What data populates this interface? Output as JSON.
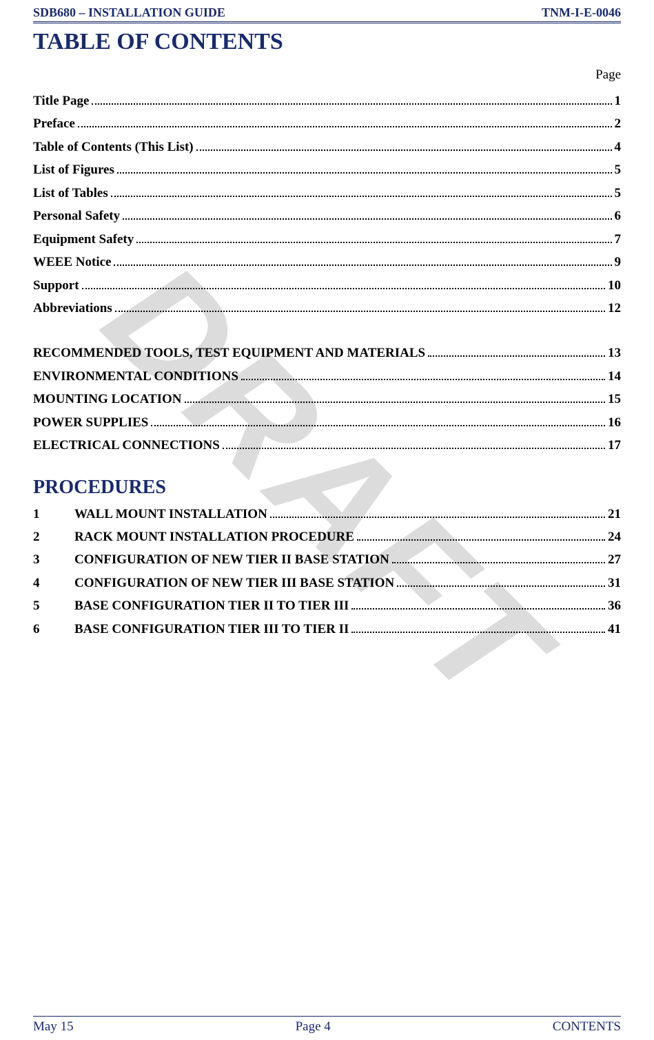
{
  "header": {
    "left": "SDB680 – INSTALLATION GUIDE",
    "right": "TNM-I-E-0046",
    "color": "#1a2a6c"
  },
  "watermark": {
    "text": "DRAFT",
    "color_rgba": "rgba(128,128,128,0.28)",
    "rotation_deg": 45,
    "fontsize": 220
  },
  "toc": {
    "title": "TABLE OF CONTENTS",
    "page_label": "Page",
    "entries": [
      {
        "label": "Title Page",
        "page": "1"
      },
      {
        "label": "Preface",
        "page": "2"
      },
      {
        "label": "Table of Contents (This List)",
        "page": "4"
      },
      {
        "label": "List of Figures",
        "page": "5"
      },
      {
        "label": "List of Tables",
        "page": "5"
      },
      {
        "label": "Personal Safety",
        "page": "6"
      },
      {
        "label": "Equipment Safety",
        "page": "7"
      },
      {
        "label": "WEEE Notice",
        "page": "9"
      },
      {
        "label": "Support",
        "page": "10"
      },
      {
        "label": "Abbreviations",
        "page": "12"
      }
    ],
    "section_entries": [
      {
        "label": "RECOMMENDED TOOLS, TEST EQUIPMENT AND MATERIALS",
        "page": "13"
      },
      {
        "label": "ENVIRONMENTAL CONDITIONS",
        "page": "14"
      },
      {
        "label": "MOUNTING LOCATION",
        "page": "15"
      },
      {
        "label": "POWER SUPPLIES",
        "page": "16"
      },
      {
        "label": "ELECTRICAL CONNECTIONS",
        "page": "17"
      }
    ]
  },
  "procedures": {
    "title": "PROCEDURES",
    "entries": [
      {
        "num": "1",
        "label": "WALL MOUNT INSTALLATION",
        "page": "21"
      },
      {
        "num": "2",
        "label": "RACK MOUNT INSTALLATION PROCEDURE",
        "page": "24"
      },
      {
        "num": "3",
        "label": "CONFIGURATION OF NEW TIER II BASE STATION",
        "page": "27"
      },
      {
        "num": "4",
        "label": "CONFIGURATION OF NEW TIER III BASE STATION",
        "page": "31"
      },
      {
        "num": "5",
        "label": "BASE CONFIGURATION TIER II TO TIER III",
        "page": "36"
      },
      {
        "num": "6",
        "label": "BASE CONFIGURATION TIER III TO TIER II",
        "page": "41"
      }
    ]
  },
  "footer": {
    "left": "May 15",
    "center": "Page 4",
    "right": "CONTENTS",
    "color": "#1a2a6c"
  },
  "typography": {
    "body_font": "Times New Roman",
    "title_fontsize": 34,
    "toc_fontsize": 19,
    "proc_title_fontsize": 28,
    "header_fontsize": 18,
    "footer_fontsize": 19
  },
  "colors": {
    "accent": "#1a2a6c",
    "text": "#000000",
    "background": "#ffffff"
  }
}
